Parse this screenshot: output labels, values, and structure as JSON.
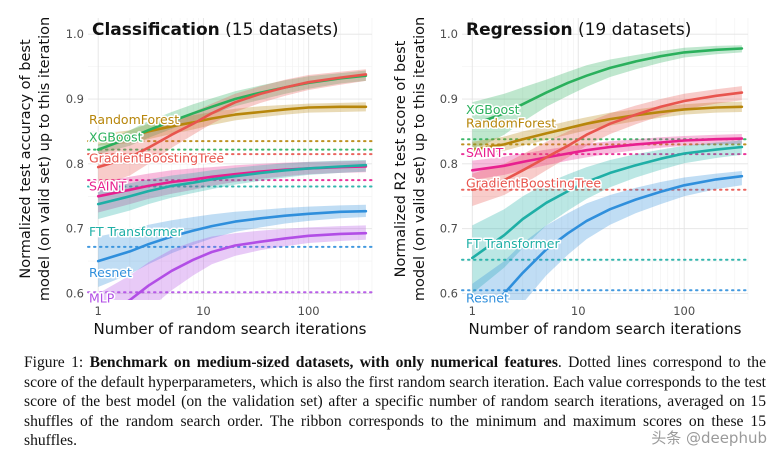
{
  "chart_data": [
    {
      "type": "line",
      "title_bold": "Classification",
      "title_rest": " (15 datasets)",
      "ylabel": "Normalized test accuracy of best model (on valid set) up to this iteration",
      "ylabel_lines": [
        "Normalized test accuracy of best",
        "model (on valid set) up to this iteration"
      ],
      "xlabel": "Number of random search iterations",
      "x_scale": "log",
      "xlim": [
        0.8,
        400
      ],
      "ylim": [
        0.59,
        1.025
      ],
      "x_ticks": [
        "1",
        "10",
        "100"
      ],
      "y_ticks": [
        "0.6",
        "0.7",
        "0.8",
        "0.9",
        "1.0"
      ],
      "grid": true,
      "series": [
        {
          "name": "RandomForest",
          "color": "#b7860b",
          "default": 0.835,
          "x": [
            1,
            2,
            3,
            5,
            8,
            12,
            20,
            35,
            60,
            100,
            200,
            350
          ],
          "y": [
            0.836,
            0.842,
            0.85,
            0.858,
            0.864,
            0.87,
            0.876,
            0.88,
            0.884,
            0.887,
            0.888,
            0.888
          ],
          "lo": [
            0.828,
            0.832,
            0.838,
            0.846,
            0.853,
            0.86,
            0.867,
            0.872,
            0.876,
            0.879,
            0.88,
            0.881
          ],
          "hi": [
            0.845,
            0.852,
            0.862,
            0.87,
            0.875,
            0.88,
            0.885,
            0.889,
            0.891,
            0.893,
            0.894,
            0.895
          ]
        },
        {
          "name": "XGBoost",
          "color": "#2ab05c",
          "default": 0.822,
          "x": [
            1,
            2,
            3,
            5,
            8,
            12,
            20,
            35,
            60,
            100,
            200,
            350
          ],
          "y": [
            0.822,
            0.84,
            0.852,
            0.866,
            0.878,
            0.888,
            0.9,
            0.91,
            0.918,
            0.925,
            0.932,
            0.936
          ],
          "lo": [
            0.815,
            0.828,
            0.84,
            0.854,
            0.866,
            0.876,
            0.889,
            0.899,
            0.908,
            0.916,
            0.924,
            0.928
          ],
          "hi": [
            0.83,
            0.852,
            0.866,
            0.88,
            0.892,
            0.901,
            0.912,
            0.921,
            0.929,
            0.935,
            0.94,
            0.944
          ]
        },
        {
          "name": "GradientBoostingTree",
          "color": "#e8554e",
          "default": 0.815,
          "x": [
            1,
            2,
            3,
            5,
            8,
            12,
            20,
            35,
            60,
            100,
            200,
            350
          ],
          "y": [
            0.795,
            0.81,
            0.825,
            0.845,
            0.862,
            0.878,
            0.895,
            0.908,
            0.918,
            0.926,
            0.933,
            0.938
          ],
          "lo": [
            0.765,
            0.782,
            0.8,
            0.825,
            0.845,
            0.862,
            0.88,
            0.894,
            0.905,
            0.914,
            0.922,
            0.928
          ],
          "hi": [
            0.825,
            0.84,
            0.852,
            0.866,
            0.88,
            0.893,
            0.908,
            0.92,
            0.93,
            0.937,
            0.942,
            0.946
          ]
        },
        {
          "name": "SAINT",
          "color": "#e8208f",
          "default": 0.775,
          "x": [
            1,
            2,
            3,
            5,
            8,
            12,
            20,
            35,
            60,
            100,
            200,
            350
          ],
          "y": [
            0.75,
            0.76,
            0.766,
            0.772,
            0.776,
            0.78,
            0.784,
            0.788,
            0.791,
            0.793,
            0.795,
            0.796
          ],
          "lo": [
            0.725,
            0.738,
            0.746,
            0.754,
            0.76,
            0.766,
            0.772,
            0.777,
            0.781,
            0.784,
            0.786,
            0.787
          ],
          "hi": [
            0.772,
            0.78,
            0.785,
            0.79,
            0.793,
            0.795,
            0.798,
            0.8,
            0.802,
            0.803,
            0.804,
            0.805
          ]
        },
        {
          "name": "FT Transformer",
          "color": "#1fafa6",
          "default": 0.765,
          "x": [
            1,
            2,
            3,
            5,
            8,
            12,
            20,
            35,
            60,
            100,
            200,
            350
          ],
          "y": [
            0.738,
            0.75,
            0.758,
            0.766,
            0.771,
            0.776,
            0.781,
            0.786,
            0.79,
            0.793,
            0.796,
            0.798
          ],
          "lo": [
            0.715,
            0.728,
            0.738,
            0.748,
            0.755,
            0.761,
            0.768,
            0.774,
            0.779,
            0.783,
            0.786,
            0.788
          ],
          "hi": [
            0.76,
            0.77,
            0.776,
            0.782,
            0.786,
            0.79,
            0.794,
            0.798,
            0.801,
            0.803,
            0.805,
            0.806
          ]
        },
        {
          "name": "Resnet",
          "color": "#2f8fdc",
          "default": 0.672,
          "x": [
            1,
            2,
            3,
            5,
            8,
            12,
            20,
            35,
            60,
            100,
            200,
            350
          ],
          "y": [
            0.65,
            0.665,
            0.676,
            0.688,
            0.697,
            0.704,
            0.711,
            0.716,
            0.72,
            0.723,
            0.726,
            0.727
          ],
          "lo": [
            0.61,
            0.63,
            0.645,
            0.662,
            0.675,
            0.685,
            0.695,
            0.702,
            0.708,
            0.712,
            0.716,
            0.718
          ],
          "hi": [
            0.688,
            0.698,
            0.706,
            0.713,
            0.718,
            0.722,
            0.726,
            0.729,
            0.732,
            0.734,
            0.736,
            0.737
          ]
        },
        {
          "name": "MLP",
          "color": "#b24ee6",
          "default": 0.602,
          "x": [
            1,
            2,
            3,
            5,
            8,
            12,
            20,
            35,
            60,
            100,
            200,
            350
          ],
          "y": [
            0.56,
            0.59,
            0.612,
            0.635,
            0.652,
            0.664,
            0.674,
            0.68,
            0.685,
            0.689,
            0.692,
            0.693
          ],
          "lo": [
            0.52,
            0.55,
            0.575,
            0.605,
            0.628,
            0.645,
            0.658,
            0.667,
            0.673,
            0.678,
            0.681,
            0.683
          ],
          "hi": [
            0.6,
            0.628,
            0.648,
            0.668,
            0.68,
            0.688,
            0.693,
            0.697,
            0.7,
            0.702,
            0.704,
            0.705
          ]
        }
      ]
    },
    {
      "type": "line",
      "title_bold": "Regression",
      "title_rest": " (19 datasets)",
      "ylabel": "Normalized R2 test score of best model (on valid set) up to this iteration",
      "ylabel_lines": [
        "Normalized R2 test score of best",
        "model (on valid set) up to this iteration"
      ],
      "xlabel": "Number of random search iterations",
      "x_scale": "log",
      "xlim": [
        0.8,
        400
      ],
      "ylim": [
        0.59,
        1.025
      ],
      "x_ticks": [
        "1",
        "10",
        "100"
      ],
      "y_ticks": [
        "0.6",
        "0.7",
        "0.8",
        "0.9",
        "1.0"
      ],
      "grid": true,
      "series": [
        {
          "name": "XGBoost",
          "color": "#2ab05c",
          "default": 0.838,
          "x": [
            1,
            2,
            3,
            5,
            8,
            12,
            20,
            35,
            60,
            100,
            200,
            350
          ],
          "y": [
            0.86,
            0.878,
            0.892,
            0.91,
            0.925,
            0.936,
            0.948,
            0.958,
            0.966,
            0.972,
            0.976,
            0.978
          ],
          "lo": [
            0.82,
            0.845,
            0.865,
            0.888,
            0.905,
            0.919,
            0.934,
            0.946,
            0.956,
            0.964,
            0.969,
            0.972
          ],
          "hi": [
            0.895,
            0.908,
            0.918,
            0.93,
            0.942,
            0.952,
            0.961,
            0.968,
            0.974,
            0.979,
            0.982,
            0.983
          ]
        },
        {
          "name": "RandomForest",
          "color": "#b7860b",
          "default": 0.83,
          "x": [
            1,
            2,
            3,
            5,
            8,
            12,
            20,
            35,
            60,
            100,
            200,
            350
          ],
          "y": [
            0.822,
            0.83,
            0.838,
            0.847,
            0.855,
            0.862,
            0.869,
            0.875,
            0.88,
            0.884,
            0.887,
            0.888
          ],
          "lo": [
            0.812,
            0.82,
            0.828,
            0.837,
            0.845,
            0.852,
            0.859,
            0.866,
            0.871,
            0.876,
            0.879,
            0.88
          ],
          "hi": [
            0.834,
            0.842,
            0.85,
            0.858,
            0.866,
            0.872,
            0.879,
            0.884,
            0.889,
            0.892,
            0.895,
            0.896
          ]
        },
        {
          "name": "SAINT",
          "color": "#e8208f",
          "default": 0.815,
          "x": [
            1,
            2,
            3,
            5,
            8,
            12,
            20,
            35,
            60,
            100,
            200,
            350
          ],
          "y": [
            0.79,
            0.797,
            0.803,
            0.81,
            0.816,
            0.821,
            0.826,
            0.83,
            0.833,
            0.836,
            0.838,
            0.839
          ],
          "lo": [
            0.775,
            0.783,
            0.79,
            0.798,
            0.805,
            0.81,
            0.816,
            0.821,
            0.825,
            0.828,
            0.83,
            0.831
          ],
          "hi": [
            0.805,
            0.811,
            0.816,
            0.822,
            0.827,
            0.831,
            0.835,
            0.838,
            0.841,
            0.843,
            0.845,
            0.846
          ]
        },
        {
          "name": "GradientBoostingTree",
          "color": "#e8554e",
          "default": 0.76,
          "x": [
            1,
            2,
            3,
            5,
            8,
            12,
            20,
            35,
            60,
            100,
            200,
            350
          ],
          "y": [
            0.76,
            0.775,
            0.79,
            0.81,
            0.828,
            0.845,
            0.862,
            0.876,
            0.888,
            0.897,
            0.905,
            0.91
          ],
          "lo": [
            0.735,
            0.752,
            0.768,
            0.79,
            0.81,
            0.828,
            0.846,
            0.861,
            0.874,
            0.884,
            0.893,
            0.898
          ],
          "hi": [
            0.785,
            0.8,
            0.815,
            0.834,
            0.85,
            0.864,
            0.878,
            0.89,
            0.9,
            0.908,
            0.915,
            0.92
          ]
        },
        {
          "name": "FT Transformer",
          "color": "#1fafa6",
          "default": 0.652,
          "x": [
            1,
            2,
            3,
            5,
            8,
            12,
            20,
            35,
            60,
            100,
            200,
            350
          ],
          "y": [
            0.655,
            0.69,
            0.715,
            0.74,
            0.758,
            0.772,
            0.786,
            0.798,
            0.808,
            0.816,
            0.822,
            0.826
          ],
          "lo": [
            0.6,
            0.64,
            0.67,
            0.705,
            0.728,
            0.746,
            0.764,
            0.779,
            0.791,
            0.801,
            0.809,
            0.814
          ],
          "hi": [
            0.705,
            0.73,
            0.75,
            0.77,
            0.784,
            0.795,
            0.806,
            0.815,
            0.822,
            0.828,
            0.833,
            0.836
          ]
        },
        {
          "name": "Resnet",
          "color": "#2f8fdc",
          "default": 0.605,
          "x": [
            1,
            2,
            3,
            5,
            8,
            12,
            20,
            35,
            60,
            100,
            200,
            350
          ],
          "y": [
            0.56,
            0.6,
            0.632,
            0.668,
            0.693,
            0.712,
            0.73,
            0.745,
            0.757,
            0.767,
            0.776,
            0.781
          ],
          "lo": [
            0.5,
            0.545,
            0.585,
            0.628,
            0.66,
            0.684,
            0.706,
            0.724,
            0.738,
            0.75,
            0.761,
            0.767
          ],
          "hi": [
            0.615,
            0.65,
            0.678,
            0.705,
            0.724,
            0.739,
            0.752,
            0.763,
            0.772,
            0.779,
            0.785,
            0.789
          ]
        }
      ]
    }
  ],
  "caption": {
    "prefix": "Figure 1: ",
    "bold": "Benchmark on medium-sized datasets, with only numerical features",
    "rest": ". Dotted lines correspond to the score of the default hyperparameters, which is also the first random search iteration. Each value corresponds to the test score of the best model (on the validation set) after a specific number of random search iterations, averaged on 15 shuffles of the random search order. The ribbon corresponds to the minimum and maximum scores on these 15 shuffles."
  },
  "watermark": "头条 @deephub"
}
